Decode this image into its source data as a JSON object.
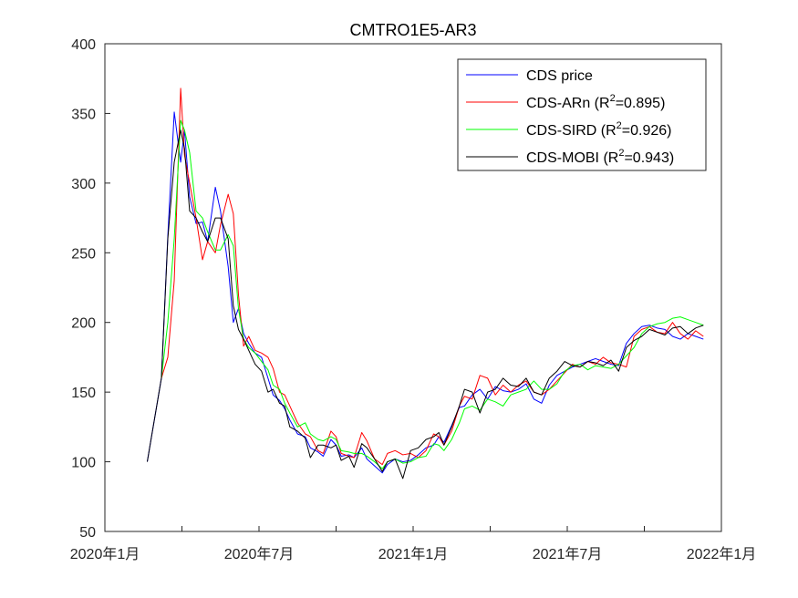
{
  "chart_data": {
    "type": "line",
    "title": "CMTRO1E5-AR3",
    "xlabel": "",
    "ylabel": "",
    "ylim": [
      50,
      400
    ],
    "yticks": [
      50,
      100,
      150,
      200,
      250,
      300,
      350,
      400
    ],
    "xlim": [
      0,
      24
    ],
    "xtick_labels": [
      {
        "label": "2020年1月",
        "month": 0
      },
      {
        "label": "2020年7月",
        "month": 6
      },
      {
        "label": "2021年1月",
        "month": 12
      },
      {
        "label": "2021年7月",
        "month": 18
      },
      {
        "label": "2022年1月",
        "month": 24
      }
    ],
    "xtick_positions": [
      0,
      3,
      6,
      9,
      12,
      15,
      18,
      21,
      24
    ],
    "grid": false,
    "legend_position": "top-right",
    "x": [
      1.65,
      2.2,
      2.45,
      2.7,
      2.95,
      3.1,
      3.3,
      3.55,
      3.8,
      4.0,
      4.3,
      4.5,
      4.8,
      5.0,
      5.2,
      5.4,
      5.6,
      5.85,
      6.1,
      6.35,
      6.55,
      6.8,
      7.0,
      7.2,
      7.5,
      7.8,
      8.0,
      8.3,
      8.5,
      8.8,
      9.0,
      9.2,
      9.5,
      9.7,
      10.0,
      10.2,
      10.5,
      10.8,
      11.0,
      11.3,
      11.6,
      11.9,
      12.2,
      12.5,
      12.8,
      13.0,
      13.2,
      13.5,
      13.8,
      14.0,
      14.3,
      14.6,
      14.9,
      15.2,
      15.5,
      15.8,
      16.1,
      16.4,
      16.7,
      17.0,
      17.3,
      17.6,
      17.9,
      18.2,
      18.5,
      18.8,
      19.1,
      19.4,
      19.7,
      20.0,
      20.3,
      20.6,
      20.9,
      21.2,
      21.5,
      21.8,
      22.1,
      22.4,
      22.7,
      23.0,
      23.3
    ],
    "series": [
      {
        "name": "CDS price",
        "color": "#0000ff",
        "values": [
          100,
          160,
          262,
          351,
          315,
          338,
          290,
          271,
          272,
          258,
          297,
          280,
          240,
          200,
          210,
          192,
          185,
          178,
          175,
          160,
          148,
          144,
          138,
          130,
          120,
          118,
          110,
          107,
          104,
          116,
          112,
          104,
          105,
          103,
          110,
          102,
          97,
          92,
          98,
          102,
          100,
          101,
          105,
          110,
          112,
          118,
          114,
          126,
          139,
          140,
          148,
          152,
          145,
          154,
          151,
          150,
          152,
          156,
          145,
          142,
          155,
          162,
          165,
          168,
          170,
          172,
          174,
          172,
          170,
          169,
          185,
          192,
          197,
          198,
          196,
          195,
          190,
          188,
          192,
          190,
          188
        ]
      },
      {
        "name": "CDS-ARn",
        "legend_r2": "0.895",
        "color": "#ff0000",
        "values": [
          null,
          160,
          175,
          230,
          368,
          320,
          300,
          275,
          245,
          258,
          250,
          270,
          292,
          278,
          220,
          183,
          190,
          180,
          178,
          175,
          167,
          150,
          148,
          140,
          128,
          120,
          118,
          108,
          106,
          122,
          118,
          106,
          104,
          103,
          121,
          115,
          102,
          98,
          106,
          108,
          105,
          106,
          103,
          108,
          120,
          118,
          112,
          122,
          140,
          147,
          145,
          162,
          160,
          148,
          155,
          150,
          155,
          158,
          150,
          148,
          152,
          158,
          164,
          170,
          168,
          172,
          170,
          175,
          171,
          170,
          168,
          190,
          195,
          197,
          193,
          192,
          200,
          192,
          188,
          194,
          190
        ]
      },
      {
        "name": "CDS-SIRD",
        "legend_r2": "0.926",
        "color": "#00ff00",
        "values": [
          null,
          160,
          200,
          260,
          345,
          338,
          322,
          280,
          275,
          265,
          252,
          252,
          263,
          255,
          210,
          188,
          182,
          178,
          172,
          166,
          155,
          152,
          142,
          135,
          125,
          128,
          120,
          116,
          115,
          118,
          116,
          108,
          107,
          106,
          106,
          104,
          100,
          95,
          100,
          102,
          99,
          100,
          103,
          104,
          113,
          112,
          108,
          116,
          128,
          138,
          140,
          137,
          145,
          143,
          140,
          148,
          150,
          152,
          158,
          152,
          152,
          156,
          165,
          169,
          170,
          166,
          169,
          168,
          167,
          170,
          176,
          182,
          192,
          197,
          199,
          200,
          203,
          204,
          202,
          200,
          198
        ]
      },
      {
        "name": "CDS-MOBI",
        "legend_r2": "0.943",
        "color": "#000000",
        "values": [
          100,
          160,
          260,
          315,
          338,
          325,
          280,
          275,
          265,
          258,
          275,
          275,
          260,
          212,
          195,
          188,
          180,
          170,
          165,
          150,
          152,
          142,
          140,
          125,
          122,
          117,
          103,
          112,
          112,
          110,
          112,
          101,
          104,
          96,
          113,
          110,
          102,
          93,
          100,
          102,
          88,
          108,
          110,
          116,
          118,
          121,
          112,
          125,
          140,
          152,
          150,
          135,
          150,
          152,
          160,
          155,
          154,
          160,
          150,
          148,
          160,
          165,
          172,
          169,
          168,
          172,
          171,
          169,
          173,
          165,
          182,
          187,
          190,
          195,
          193,
          191,
          196,
          197,
          192,
          196,
          198
        ]
      }
    ]
  }
}
